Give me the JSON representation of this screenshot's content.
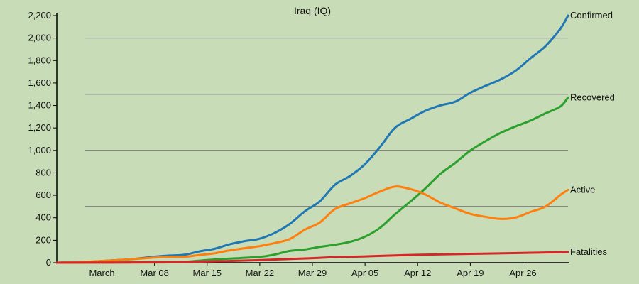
{
  "chart_data": {
    "type": "line",
    "title": "Iraq (IQ)",
    "xlabel": "",
    "ylabel": "",
    "x_start_label": "Feb 24",
    "x_end_label": "May 02",
    "x_tick_labels": [
      "March",
      "Mar 08",
      "Mar 15",
      "Mar 22",
      "Mar 29",
      "Apr 05",
      "Apr 12",
      "Apr 19",
      "Apr 26"
    ],
    "y_ticks": [
      0,
      200,
      400,
      600,
      800,
      1000,
      1200,
      1400,
      1600,
      1800,
      2000,
      2200
    ],
    "y_tick_labels": [
      "0",
      "200",
      "400",
      "600",
      "800",
      "1,000",
      "1,200",
      "1,400",
      "1,600",
      "1,800",
      "2,000",
      "2,200"
    ],
    "ylim": [
      0,
      2200
    ],
    "grid": "horizontal, every 500",
    "background": "#c8dcb7",
    "series": [
      {
        "name": "Confirmed",
        "color": "#1f77b4",
        "points": [
          [
            "Feb 24",
            0
          ],
          [
            "Feb 28",
            8
          ],
          [
            "Mar 02",
            19
          ],
          [
            "Mar 05",
            32
          ],
          [
            "Mar 08",
            54
          ],
          [
            "Mar 10",
            64
          ],
          [
            "Mar 12",
            71
          ],
          [
            "Mar 14",
            101
          ],
          [
            "Mar 16",
            124
          ],
          [
            "Mar 18",
            164
          ],
          [
            "Mar 20",
            192
          ],
          [
            "Mar 22",
            214
          ],
          [
            "Mar 24",
            266
          ],
          [
            "Mar 26",
            346
          ],
          [
            "Mar 28",
            458
          ],
          [
            "Mar 30",
            547
          ],
          [
            "Apr 01",
            694
          ],
          [
            "Apr 03",
            772
          ],
          [
            "Apr 05",
            878
          ],
          [
            "Apr 07",
            1031
          ],
          [
            "Apr 09",
            1202
          ],
          [
            "Apr 11",
            1279
          ],
          [
            "Apr 13",
            1352
          ],
          [
            "Apr 15",
            1400
          ],
          [
            "Apr 17",
            1434
          ],
          [
            "Apr 19",
            1513
          ],
          [
            "Apr 21",
            1574
          ],
          [
            "Apr 23",
            1631
          ],
          [
            "Apr 25",
            1708
          ],
          [
            "Apr 27",
            1820
          ],
          [
            "Apr 29",
            1928
          ],
          [
            "May 01",
            2085
          ],
          [
            "May 02",
            2200
          ]
        ]
      },
      {
        "name": "Recovered",
        "color": "#2ca02c",
        "points": [
          [
            "Feb 24",
            0
          ],
          [
            "Mar 08",
            2
          ],
          [
            "Mar 12",
            8
          ],
          [
            "Mar 15",
            24
          ],
          [
            "Mar 18",
            36
          ],
          [
            "Mar 22",
            52
          ],
          [
            "Mar 24",
            73
          ],
          [
            "Mar 26",
            105
          ],
          [
            "Mar 28",
            118
          ],
          [
            "Mar 30",
            141
          ],
          [
            "Apr 01",
            160
          ],
          [
            "Apr 03",
            186
          ],
          [
            "Apr 05",
            232
          ],
          [
            "Apr 07",
            311
          ],
          [
            "Apr 09",
            432
          ],
          [
            "Apr 11",
            543
          ],
          [
            "Apr 13",
            660
          ],
          [
            "Apr 15",
            790
          ],
          [
            "Apr 17",
            889
          ],
          [
            "Apr 19",
            998
          ],
          [
            "Apr 21",
            1081
          ],
          [
            "Apr 23",
            1155
          ],
          [
            "Apr 25",
            1213
          ],
          [
            "Apr 27",
            1265
          ],
          [
            "Apr 29",
            1330
          ],
          [
            "May 01",
            1392
          ],
          [
            "May 02",
            1471
          ]
        ]
      },
      {
        "name": "Active",
        "color": "#ff7f0e",
        "points": [
          [
            "Feb 24",
            0
          ],
          [
            "Feb 28",
            8
          ],
          [
            "Mar 02",
            19
          ],
          [
            "Mar 05",
            31
          ],
          [
            "Mar 08",
            46
          ],
          [
            "Mar 10",
            52
          ],
          [
            "Mar 12",
            52
          ],
          [
            "Mar 14",
            69
          ],
          [
            "Mar 16",
            84
          ],
          [
            "Mar 18",
            110
          ],
          [
            "Mar 20",
            129
          ],
          [
            "Mar 22",
            148
          ],
          [
            "Mar 24",
            175
          ],
          [
            "Mar 26",
            211
          ],
          [
            "Mar 28",
            294
          ],
          [
            "Mar 30",
            359
          ],
          [
            "Apr 01",
            478
          ],
          [
            "Apr 03",
            528
          ],
          [
            "Apr 05",
            576
          ],
          [
            "Apr 07",
            634
          ],
          [
            "Apr 09",
            678
          ],
          [
            "Apr 11",
            656
          ],
          [
            "Apr 13",
            608
          ],
          [
            "Apr 15",
            536
          ],
          [
            "Apr 17",
            484
          ],
          [
            "Apr 19",
            435
          ],
          [
            "Apr 21",
            409
          ],
          [
            "Apr 23",
            390
          ],
          [
            "Apr 25",
            402
          ],
          [
            "Apr 27",
            452
          ],
          [
            "Apr 29",
            500
          ],
          [
            "May 01",
            604
          ],
          [
            "May 02",
            649
          ]
        ]
      },
      {
        "name": "Fatalities",
        "color": "#d62728",
        "points": [
          [
            "Feb 24",
            0
          ],
          [
            "Mar 08",
            4
          ],
          [
            "Mar 15",
            10
          ],
          [
            "Mar 22",
            23
          ],
          [
            "Mar 26",
            33
          ],
          [
            "Mar 29",
            40
          ],
          [
            "Apr 01",
            50
          ],
          [
            "Apr 05",
            56
          ],
          [
            "Apr 09",
            65
          ],
          [
            "Apr 12",
            70
          ],
          [
            "Apr 19",
            79
          ],
          [
            "Apr 26",
            87
          ],
          [
            "May 02",
            95
          ]
        ]
      }
    ]
  }
}
